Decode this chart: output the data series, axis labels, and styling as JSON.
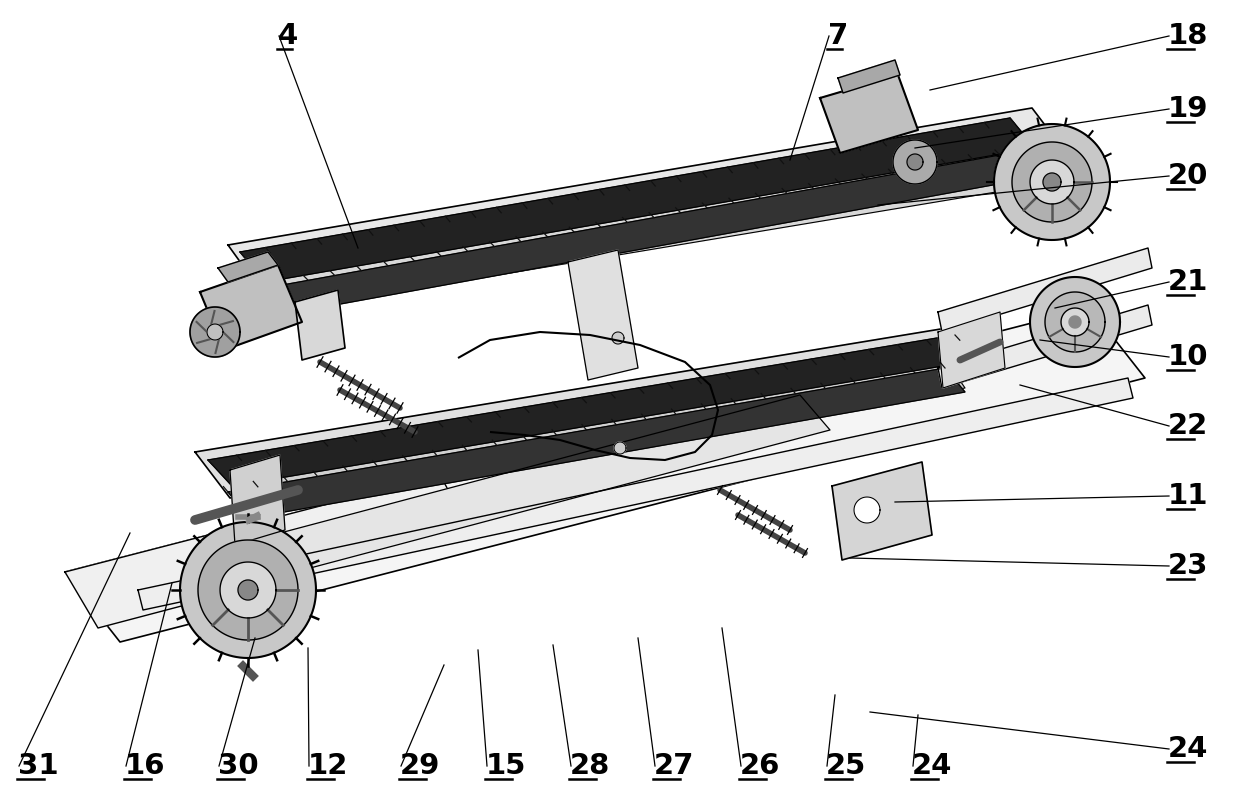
{
  "bg_color": "#ffffff",
  "line_color": "#000000",
  "fig_width": 12.4,
  "fig_height": 7.92,
  "right_labels": [
    [
      "18",
      1168,
      22,
      930,
      90
    ],
    [
      "19",
      1168,
      95,
      915,
      148
    ],
    [
      "20",
      1168,
      162,
      878,
      205
    ],
    [
      "21",
      1168,
      268,
      1055,
      308
    ],
    [
      "10",
      1168,
      343,
      1040,
      340
    ],
    [
      "22",
      1168,
      412,
      1020,
      385
    ],
    [
      "11",
      1168,
      482,
      895,
      502
    ],
    [
      "23",
      1168,
      552,
      850,
      558
    ],
    [
      "24",
      1168,
      735,
      870,
      712
    ]
  ],
  "top_labels": [
    [
      "4",
      278,
      22,
      358,
      248
    ],
    [
      "7",
      828,
      22,
      790,
      160
    ]
  ],
  "bottom_labels": [
    [
      "31",
      18,
      752,
      130,
      533
    ],
    [
      "16",
      125,
      752,
      172,
      583
    ],
    [
      "30",
      218,
      752,
      255,
      638
    ],
    [
      "12",
      308,
      752,
      308,
      648
    ],
    [
      "29",
      400,
      752,
      444,
      665
    ],
    [
      "15",
      486,
      752,
      478,
      650
    ],
    [
      "28",
      570,
      752,
      553,
      645
    ],
    [
      "27",
      654,
      752,
      638,
      638
    ],
    [
      "26",
      740,
      752,
      722,
      628
    ],
    [
      "25",
      826,
      752,
      835,
      695
    ],
    [
      "24",
      912,
      752,
      918,
      715
    ]
  ]
}
